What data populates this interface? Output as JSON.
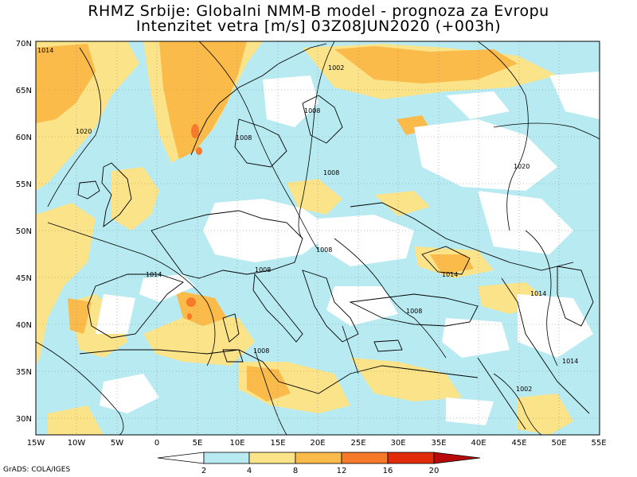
{
  "title_line1": "RHMZ Srbije: Globalni NMM-B model - prognoza za Evropu",
  "title_line2": "Intenzitet vetra [m/s] 03Z08JUN2020 (+003h)",
  "credit": "GrADS: COLA/IGES",
  "lat_labels": [
    "70N",
    "65N",
    "60N",
    "55N",
    "50N",
    "45N",
    "40N",
    "35N",
    "30N"
  ],
  "lon_labels": [
    "15W",
    "10W",
    "5W",
    "0",
    "5E",
    "10E",
    "15E",
    "20E",
    "25E",
    "30E",
    "35E",
    "40E",
    "45E",
    "50E",
    "55E"
  ],
  "colorbar": {
    "ticks": [
      "2",
      "4",
      "8",
      "12",
      "16",
      "20"
    ],
    "colors": [
      "#ffffff",
      "#b8eaf2",
      "#fbe38a",
      "#fbbb4a",
      "#f7792a",
      "#e02a0a",
      "#b80a0a"
    ]
  },
  "isobar_labels": [
    "1002",
    "1008",
    "1008",
    "1008",
    "1008",
    "1008",
    "1008",
    "1008",
    "1014",
    "1014",
    "1014",
    "1014",
    "1020",
    "1020",
    "1014",
    "1002"
  ],
  "colors": {
    "calm": "#ffffff",
    "light": "#b8eaf2",
    "moderate": "#fbe38a",
    "fresh": "#fbbb4a",
    "strong": "#f7792a",
    "coast": "#000000"
  }
}
